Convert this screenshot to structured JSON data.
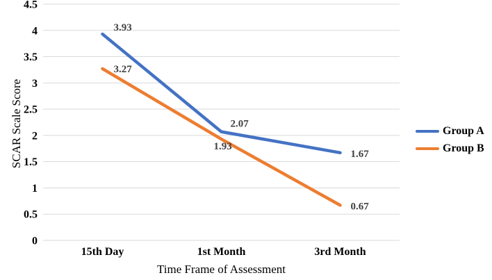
{
  "chart_data": {
    "type": "line",
    "title": "",
    "xlabel": "Time Frame of Assessment",
    "ylabel": "SCAR Scale Score",
    "categories": [
      "15th Day",
      "1st Month",
      "3rd Month"
    ],
    "series": [
      {
        "name": "Group A",
        "values": [
          3.93,
          2.07,
          1.67
        ],
        "labels": [
          "3.93",
          "2.07",
          "1.67"
        ],
        "color": "#4472C4"
      },
      {
        "name": "Group B",
        "values": [
          3.27,
          1.93,
          0.67
        ],
        "labels": [
          "3.27",
          "1.93",
          "0.67"
        ],
        "color": "#ED7D31"
      }
    ],
    "ylim": [
      0,
      4.5
    ],
    "yticks": [
      "0",
      "0.5",
      "1",
      "1.5",
      "2",
      "2.5",
      "3",
      "3.5",
      "4",
      "4.5"
    ],
    "grid": "horizontal",
    "gridline_color": "#d9d9d9",
    "data_label_color": "#404040",
    "legend_position": "right"
  }
}
